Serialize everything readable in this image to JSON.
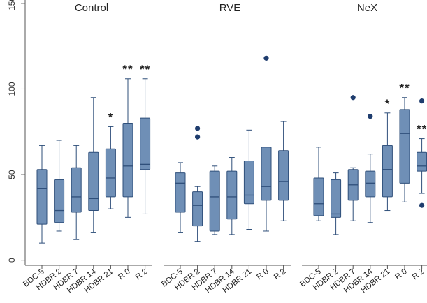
{
  "chart_data": {
    "type": "box",
    "panels": [
      "Control",
      "RVE",
      "NeX"
    ],
    "categories": [
      "BDC-5",
      "HDBR 2",
      "HDBR 7",
      "HDBR 14",
      "HDBR 21",
      "R 0",
      "R 2"
    ],
    "y_ticks": [
      "0",
      "50",
      "100",
      "150"
    ],
    "ylim": [
      -3,
      152
    ],
    "grid": false,
    "box_color": "#6f8fb6",
    "box_edge_color": "#2f4f7a",
    "outlier_color": "#1f3d6e",
    "groups": [
      {
        "name": "Control",
        "boxes": [
          {
            "category": "BDC-5",
            "min": 10,
            "q1": 21,
            "median": 42,
            "q3": 53,
            "max": 67,
            "outliers": [],
            "sig": ""
          },
          {
            "category": "HDBR 2",
            "min": 17,
            "q1": 22,
            "median": 29,
            "q3": 47,
            "max": 70,
            "outliers": [],
            "sig": ""
          },
          {
            "category": "HDBR 7",
            "min": 12,
            "q1": 28,
            "median": 37,
            "q3": 54,
            "max": 67,
            "outliers": [],
            "sig": ""
          },
          {
            "category": "HDBR 14",
            "min": 16,
            "q1": 29,
            "median": 36,
            "q3": 63,
            "max": 95,
            "outliers": [],
            "sig": ""
          },
          {
            "category": "HDBR 21",
            "min": 30,
            "q1": 37,
            "median": 48,
            "q3": 65,
            "max": 78,
            "outliers": [],
            "sig": "*"
          },
          {
            "category": "R 0",
            "min": 25,
            "q1": 37,
            "median": 55,
            "q3": 80,
            "max": 106,
            "outliers": [],
            "sig": "**"
          },
          {
            "category": "R 2",
            "min": 27,
            "q1": 53,
            "median": 56,
            "q3": 83,
            "max": 106,
            "outliers": [],
            "sig": "**"
          }
        ]
      },
      {
        "name": "RVE",
        "boxes": [
          {
            "category": "BDC-5",
            "min": 16,
            "q1": 28,
            "median": 45,
            "q3": 51,
            "max": 57,
            "outliers": [],
            "sig": ""
          },
          {
            "category": "HDBR 2",
            "min": 11,
            "q1": 20,
            "median": 32,
            "q3": 40,
            "max": 43,
            "outliers": [
              72,
              77
            ],
            "sig": ""
          },
          {
            "category": "HDBR 7",
            "min": 15,
            "q1": 17,
            "median": 37,
            "q3": 52,
            "max": 55,
            "outliers": [],
            "sig": ""
          },
          {
            "category": "HDBR 14",
            "min": 15,
            "q1": 24,
            "median": 37,
            "q3": 52,
            "max": 60,
            "outliers": [],
            "sig": ""
          },
          {
            "category": "HDBR 21",
            "min": 18,
            "q1": 33,
            "median": 38,
            "q3": 58,
            "max": 76,
            "outliers": [],
            "sig": ""
          },
          {
            "category": "R 0",
            "min": 17,
            "q1": 35,
            "median": 43,
            "q3": 66,
            "max": 66,
            "outliers": [
              118
            ],
            "sig": ""
          },
          {
            "category": "R 2",
            "min": 23,
            "q1": 35,
            "median": 46,
            "q3": 64,
            "max": 81,
            "outliers": [],
            "sig": ""
          }
        ]
      },
      {
        "name": "NeX",
        "boxes": [
          {
            "category": "BDC-5",
            "min": 23,
            "q1": 26,
            "median": 33,
            "q3": 48,
            "max": 66,
            "outliers": [],
            "sig": ""
          },
          {
            "category": "HDBR 2",
            "min": 15,
            "q1": 25,
            "median": 27,
            "q3": 47,
            "max": 51,
            "outliers": [],
            "sig": ""
          },
          {
            "category": "HDBR 7",
            "min": 23,
            "q1": 35,
            "median": 44,
            "q3": 53,
            "max": 54,
            "outliers": [
              95
            ],
            "sig": ""
          },
          {
            "category": "HDBR 14",
            "min": 22,
            "q1": 37,
            "median": 45,
            "q3": 52,
            "max": 62,
            "outliers": [
              84
            ],
            "sig": ""
          },
          {
            "category": "HDBR 21",
            "min": 29,
            "q1": 37,
            "median": 53,
            "q3": 67,
            "max": 86,
            "outliers": [],
            "sig": "*"
          },
          {
            "category": "R 0",
            "min": 34,
            "q1": 45,
            "median": 74,
            "q3": 88,
            "max": 95,
            "outliers": [],
            "sig": "**"
          },
          {
            "category": "R 2",
            "min": 39,
            "q1": 52,
            "median": 55,
            "q3": 63,
            "max": 71,
            "outliers": [
              93,
              32
            ],
            "sig": "**"
          }
        ]
      }
    ]
  }
}
